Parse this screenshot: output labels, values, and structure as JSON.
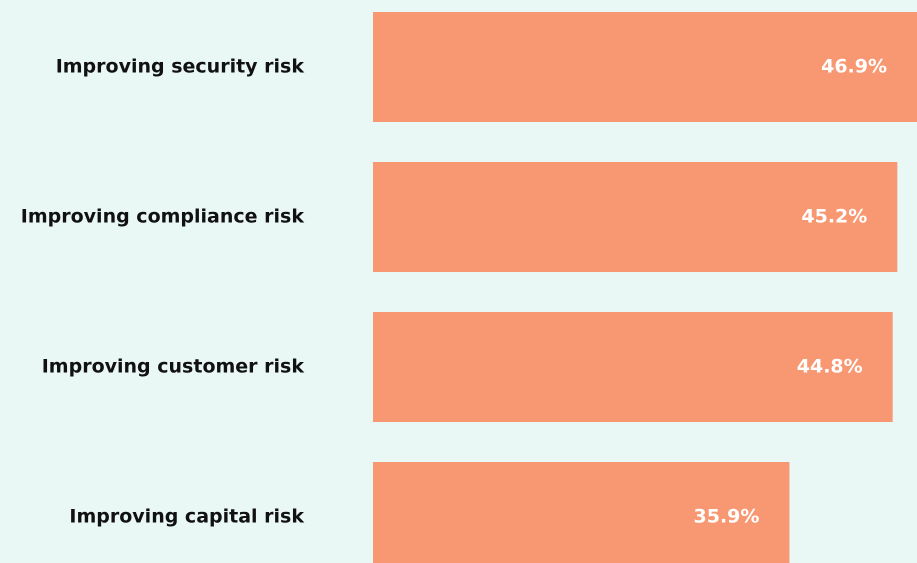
{
  "chart_data": {
    "type": "bar",
    "orientation": "horizontal",
    "categories": [
      "Improving security risk",
      "Improving compliance risk",
      "Improving customer risk",
      "Improving capital risk"
    ],
    "values": [
      46.9,
      45.2,
      44.8,
      35.9
    ],
    "value_labels": [
      "46.9%",
      "45.2%",
      "44.8%",
      "35.9%"
    ],
    "color": "#f89872"
  }
}
